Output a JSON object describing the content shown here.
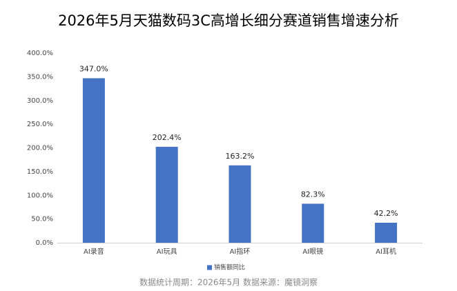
{
  "chart_data": {
    "type": "bar",
    "title": "2026年5月天猫数码3C高增长细分赛道销售增速分析",
    "categories": [
      "AI录音",
      "AI玩具",
      "AI指环",
      "AI眼镜",
      "AI耳机"
    ],
    "series": [
      {
        "name": "销售额同比",
        "color": "#4472c4",
        "values": [
          347.0,
          202.4,
          163.2,
          82.3,
          42.2
        ],
        "value_labels": [
          "347.0%",
          "202.4%",
          "163.2%",
          "82.3%",
          "42.2%"
        ]
      }
    ],
    "ylim": [
      0,
      400
    ],
    "yticks": [
      {
        "value": 0,
        "label": "0.0%"
      },
      {
        "value": 50,
        "label": "50.0%"
      },
      {
        "value": 100,
        "label": "100.0%"
      },
      {
        "value": 150,
        "label": "150.0%"
      },
      {
        "value": 200,
        "label": "200.0%"
      },
      {
        "value": 250,
        "label": "250.0%"
      },
      {
        "value": 300,
        "label": "300.0%"
      },
      {
        "value": 350,
        "label": "350.0%"
      },
      {
        "value": 400,
        "label": "400.0%"
      }
    ],
    "grid": false,
    "legend": "bottom",
    "note": "数据统计周期：2026年5月  数据来源：魔镜洞察"
  }
}
